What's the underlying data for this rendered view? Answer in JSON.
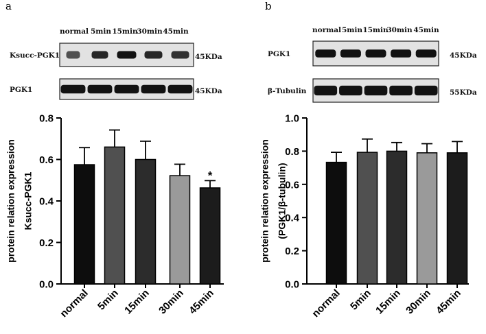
{
  "chart_data": [
    {
      "panel_label": "a",
      "type": "bar",
      "categories": [
        "normal",
        "5min",
        "15min",
        "30min",
        "45min"
      ],
      "series": [
        {
          "name": "Ksucc-PGK1",
          "values": [
            0.575,
            0.66,
            0.6,
            0.522,
            0.463
          ],
          "errors": [
            0.082,
            0.082,
            0.088,
            0.055,
            0.035
          ]
        }
      ],
      "bar_colors": [
        "#0d0d0d",
        "#505050",
        "#2c2c2c",
        "#9a9a9a",
        "#1c1c1c"
      ],
      "annotations": [
        {
          "category": "45min",
          "text": "*"
        }
      ],
      "ylabel_line1": "protein relation expression",
      "ylabel_line2": "Ksucc-PGK1",
      "xlabel": "",
      "ylim": [
        0,
        0.8
      ],
      "yticks": [
        0.0,
        0.2,
        0.4,
        0.6,
        0.8
      ],
      "ytick_labels": [
        "0.0",
        "0.2",
        "0.4",
        "0.6",
        "0.8"
      ],
      "blot": {
        "lane_labels": [
          "normal",
          "5min",
          "15min",
          "30min",
          "45min"
        ],
        "rows": [
          {
            "label": "Ksucc-PGK1",
            "size": "45KDa"
          },
          {
            "label": "PGK1",
            "size": "45KDa"
          }
        ]
      }
    },
    {
      "panel_label": "b",
      "type": "bar",
      "categories": [
        "normal",
        "5min",
        "15min",
        "30min",
        "45min"
      ],
      "series": [
        {
          "name": "PGK1/β-tubulin",
          "values": [
            0.733,
            0.793,
            0.8,
            0.79,
            0.79
          ],
          "errors": [
            0.06,
            0.08,
            0.052,
            0.055,
            0.068
          ]
        }
      ],
      "bar_colors": [
        "#0d0d0d",
        "#505050",
        "#2c2c2c",
        "#9a9a9a",
        "#1c1c1c"
      ],
      "annotations": [],
      "ylabel_line1": "protein relation expression",
      "ylabel_line2": "(PGK1/β-tubulin)",
      "xlabel": "",
      "ylim": [
        0,
        1.0
      ],
      "yticks": [
        0.0,
        0.2,
        0.4,
        0.6,
        0.8,
        1.0
      ],
      "ytick_labels": [
        "0.0",
        "0.2",
        "0.4",
        "0.6",
        "0.8",
        "1.0"
      ],
      "blot": {
        "lane_labels": [
          "normal",
          "5min",
          "15min",
          "30min",
          "45min"
        ],
        "rows": [
          {
            "label": "PGK1",
            "size": "45KDa"
          },
          {
            "label": "β-Tubulin",
            "size": "55KDa"
          }
        ]
      }
    }
  ]
}
